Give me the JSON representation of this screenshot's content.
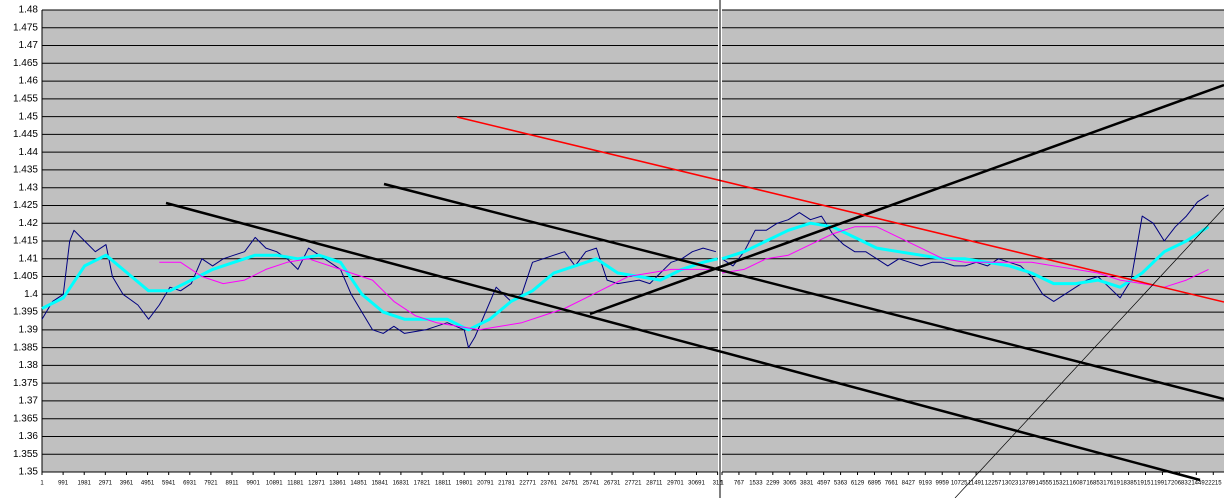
{
  "chart_data": [
    {
      "type": "line",
      "grid": true,
      "show_ytick_labels": true,
      "xlim": [
        1,
        31700
      ],
      "ylim": [
        1.35,
        1.48
      ],
      "yticks": [
        1.35,
        1.355,
        1.36,
        1.365,
        1.37,
        1.375,
        1.38,
        1.385,
        1.39,
        1.395,
        1.4,
        1.405,
        1.41,
        1.415,
        1.42,
        1.425,
        1.43,
        1.435,
        1.44,
        1.445,
        1.45,
        1.455,
        1.46,
        1.465,
        1.47,
        1.475,
        1.48
      ],
      "xticks": [
        1,
        991,
        1981,
        2971,
        3961,
        4951,
        5941,
        6931,
        7921,
        8911,
        9901,
        10891,
        11881,
        12871,
        13861,
        14851,
        15841,
        16831,
        17821,
        18811,
        19801,
        20791,
        21781,
        22771,
        23761,
        24751,
        25741,
        26731,
        27721,
        28711,
        29701,
        30691,
        {
          "value": 31681,
          "label": "316"
        }
      ],
      "series": [
        {
          "color": "#000080",
          "width": 1,
          "x": [
            1,
            500,
            1000,
            1300,
            1500,
            2000,
            2500,
            3000,
            3300,
            3800,
            4500,
            5000,
            5500,
            6000,
            6500,
            7000,
            7500,
            8000,
            8500,
            9000,
            9500,
            10000,
            10500,
            11000,
            11500,
            12000,
            12500,
            13000,
            14000,
            14500,
            15000,
            15500,
            16000,
            16500,
            17000,
            18000,
            19000,
            19800,
            20000,
            20300,
            20800,
            21300,
            22000,
            22500,
            23000,
            23500,
            24000,
            24500,
            25000,
            25500,
            26000,
            26500,
            27000,
            28000,
            28500,
            29000,
            29500,
            30000,
            30500,
            31000,
            31600
          ],
          "values": [
            1.393,
            1.398,
            1.4,
            1.415,
            1.418,
            1.415,
            1.412,
            1.414,
            1.405,
            1.4,
            1.397,
            1.393,
            1.397,
            1.402,
            1.401,
            1.403,
            1.41,
            1.408,
            1.41,
            1.411,
            1.412,
            1.416,
            1.413,
            1.412,
            1.41,
            1.407,
            1.413,
            1.411,
            1.407,
            1.4,
            1.395,
            1.39,
            1.389,
            1.391,
            1.389,
            1.39,
            1.392,
            1.39,
            1.385,
            1.388,
            1.395,
            1.402,
            1.398,
            1.4,
            1.409,
            1.41,
            1.411,
            1.412,
            1.408,
            1.412,
            1.413,
            1.404,
            1.403,
            1.404,
            1.403,
            1.406,
            1.409,
            1.41,
            1.412,
            1.413,
            1.412
          ]
        },
        {
          "color": "#00ffff",
          "width": 3,
          "x": [
            1,
            1000,
            2000,
            3000,
            4000,
            5000,
            6000,
            7000,
            8000,
            9000,
            10000,
            11000,
            12000,
            13000,
            14000,
            15000,
            16000,
            17000,
            18000,
            19000,
            20000,
            21000,
            22000,
            23000,
            24000,
            25000,
            26000,
            27000,
            28000,
            29000,
            30000,
            31000,
            31680
          ],
          "values": [
            1.396,
            1.399,
            1.408,
            1.411,
            1.406,
            1.401,
            1.401,
            1.404,
            1.407,
            1.409,
            1.411,
            1.411,
            1.41,
            1.411,
            1.409,
            1.4,
            1.395,
            1.393,
            1.393,
            1.393,
            1.39,
            1.393,
            1.398,
            1.401,
            1.406,
            1.408,
            1.41,
            1.406,
            1.405,
            1.404,
            1.407,
            1.409,
            1.41
          ]
        },
        {
          "color": "#ff00ff",
          "width": 1,
          "x": [
            5500,
            6500,
            7500,
            8500,
            9500,
            10500,
            11500,
            12500,
            13500,
            14500,
            15500,
            16500,
            17500,
            18500,
            19500,
            20500,
            21500,
            22500,
            23500,
            24500,
            25500,
            26500,
            27500,
            28500,
            29500,
            30500,
            31500
          ],
          "values": [
            1.409,
            1.409,
            1.405,
            1.403,
            1.404,
            1.407,
            1.409,
            1.41,
            1.408,
            1.406,
            1.404,
            1.398,
            1.394,
            1.392,
            1.391,
            1.39,
            1.391,
            1.392,
            1.394,
            1.396,
            1.399,
            1.402,
            1.405,
            1.406,
            1.407,
            1.407,
            1.407
          ]
        }
      ]
    },
    {
      "type": "line",
      "grid": true,
      "show_ytick_labels": false,
      "xlim": [
        1,
        22700
      ],
      "ylim": [
        1.35,
        1.48
      ],
      "yticks": [
        1.35,
        1.355,
        1.36,
        1.365,
        1.37,
        1.375,
        1.38,
        1.385,
        1.39,
        1.395,
        1.4,
        1.405,
        1.41,
        1.415,
        1.42,
        1.425,
        1.43,
        1.435,
        1.44,
        1.445,
        1.45,
        1.455,
        1.46,
        1.465,
        1.47,
        1.475,
        1.48
      ],
      "xticks": [
        1,
        767,
        1533,
        2299,
        3065,
        3831,
        4597,
        5363,
        6129,
        6895,
        7661,
        8427,
        9193,
        9959,
        10725,
        11491,
        12257,
        13023,
        13789,
        14555,
        15321,
        16087,
        16853,
        17619,
        18385,
        19151,
        19917,
        20683,
        21449,
        22215
      ],
      "series": [
        {
          "color": "#000080",
          "width": 1,
          "x": [
            1,
            500,
            1000,
            1500,
            2000,
            2500,
            3000,
            3500,
            4000,
            4500,
            5000,
            5500,
            6000,
            6500,
            7000,
            7500,
            8000,
            8500,
            9000,
            9500,
            10000,
            10500,
            11000,
            11500,
            12000,
            12500,
            13000,
            13500,
            14000,
            14500,
            15000,
            15500,
            16000,
            16500,
            17000,
            17500,
            18000,
            18500,
            19000,
            19500,
            20000,
            20500,
            21000,
            21500,
            22000
          ],
          "values": [
            1.41,
            1.408,
            1.412,
            1.418,
            1.418,
            1.42,
            1.421,
            1.423,
            1.421,
            1.422,
            1.417,
            1.414,
            1.412,
            1.412,
            1.41,
            1.408,
            1.41,
            1.409,
            1.408,
            1.409,
            1.409,
            1.408,
            1.408,
            1.409,
            1.408,
            1.41,
            1.409,
            1.408,
            1.405,
            1.4,
            1.398,
            1.4,
            1.402,
            1.404,
            1.405,
            1.402,
            1.399,
            1.404,
            1.422,
            1.42,
            1.415,
            1.419,
            1.422,
            1.426,
            1.428
          ]
        },
        {
          "color": "#00ffff",
          "width": 3,
          "x": [
            1,
            1000,
            2000,
            3000,
            4000,
            5000,
            6000,
            7000,
            8000,
            9000,
            10000,
            11000,
            12000,
            13000,
            14000,
            15000,
            16000,
            17000,
            18000,
            19000,
            20000,
            21000,
            22000
          ],
          "values": [
            1.41,
            1.412,
            1.415,
            1.418,
            1.42,
            1.419,
            1.416,
            1.413,
            1.412,
            1.411,
            1.41,
            1.41,
            1.409,
            1.408,
            1.406,
            1.403,
            1.403,
            1.404,
            1.402,
            1.406,
            1.412,
            1.415,
            1.419
          ]
        },
        {
          "color": "#ff00ff",
          "width": 1,
          "x": [
            1,
            1000,
            2000,
            3000,
            4000,
            5000,
            6000,
            7000,
            8000,
            9000,
            10000,
            11000,
            12000,
            13000,
            14000,
            15000,
            16000,
            17000,
            18000,
            19000,
            20000,
            21000,
            22000
          ],
          "values": [
            1.406,
            1.407,
            1.41,
            1.411,
            1.414,
            1.417,
            1.419,
            1.419,
            1.416,
            1.413,
            1.41,
            1.409,
            1.409,
            1.409,
            1.409,
            1.408,
            1.407,
            1.406,
            1.404,
            1.403,
            1.402,
            1.404,
            1.407
          ]
        }
      ]
    }
  ]
}
